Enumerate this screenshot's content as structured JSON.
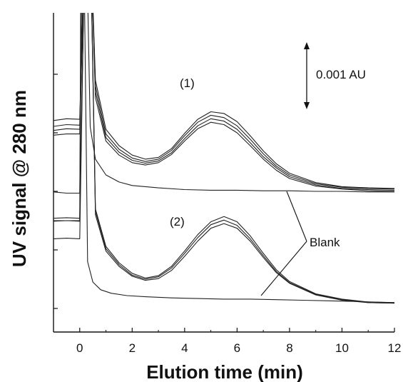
{
  "chart_data": {
    "type": "line",
    "title": "",
    "xlabel": "Elution time (min)",
    "ylabel": "UV signal @ 280 nm",
    "xlim": [
      -1,
      12
    ],
    "x_ticks": [
      0,
      2,
      4,
      6,
      8,
      10,
      12
    ],
    "x_tick_labels": [
      "0",
      "2",
      "4",
      "6",
      "8",
      "10",
      "12"
    ],
    "y_scale_bar": "0.001 AU",
    "y_tick_labels_shown": false,
    "annotations": {
      "group1": "(1)",
      "group2": "(2)",
      "blank": "Blank"
    },
    "series": [
      {
        "group": "(1)",
        "x": [
          -1.0,
          -0.5,
          0.0,
          0.2,
          0.4,
          0.6,
          1.0,
          1.5,
          2.0,
          2.5,
          3.0,
          3.5,
          4.0,
          4.5,
          5.0,
          5.5,
          6.0,
          6.5,
          7.0,
          7.5,
          8.0,
          9.0,
          10.0,
          11.0,
          12.0
        ],
        "y": [
          0.00121,
          0.00124,
          0.00123,
          0.0045,
          0.0045,
          0.0019,
          0.00106,
          0.00078,
          0.00062,
          0.00055,
          0.00058,
          0.00073,
          0.00099,
          0.00123,
          0.00136,
          0.00133,
          0.00119,
          0.00095,
          0.00069,
          0.00047,
          0.00031,
          0.00015,
          8e-05,
          6e-05,
          5e-05
        ]
      },
      {
        "group": "(1)",
        "x": [
          -1.0,
          -0.5,
          0.0,
          0.2,
          0.4,
          0.6,
          1.0,
          1.5,
          2.0,
          2.5,
          3.0,
          3.5,
          4.0,
          4.5,
          5.0,
          5.5,
          6.0,
          6.5,
          7.0,
          7.5,
          8.0,
          9.0,
          10.0,
          11.0,
          12.0
        ],
        "y": [
          0.00111,
          0.00114,
          0.00113,
          0.0045,
          0.0045,
          0.0018,
          0.00098,
          0.00072,
          0.00057,
          0.00051,
          0.00055,
          0.0007,
          0.00095,
          0.00118,
          0.0013,
          0.00126,
          0.00112,
          0.00089,
          0.00064,
          0.00043,
          0.00028,
          0.00013,
          7e-05,
          5e-05,
          4e-05
        ]
      },
      {
        "group": "(1)",
        "x": [
          -1.0,
          -0.5,
          0.0,
          0.2,
          0.4,
          0.6,
          1.0,
          1.5,
          2.0,
          2.5,
          3.0,
          3.5,
          4.0,
          4.5,
          5.0,
          5.5,
          6.0,
          6.5,
          7.0,
          7.5,
          8.0,
          9.0,
          10.0,
          11.0,
          12.0
        ],
        "y": [
          0.00104,
          0.00107,
          0.00106,
          0.0045,
          0.0045,
          0.0017,
          0.00092,
          0.00067,
          0.00053,
          0.00048,
          0.00052,
          0.00066,
          0.0009,
          0.00112,
          0.00124,
          0.0012,
          0.00106,
          0.00083,
          0.00059,
          0.0004,
          0.00025,
          0.00011,
          5e-05,
          3e-05,
          2e-05
        ]
      },
      {
        "group": "(1)",
        "x": [
          -1.0,
          -0.5,
          0.0,
          0.2,
          0.4,
          0.6,
          1.0,
          1.5,
          2.0,
          2.5,
          3.0,
          3.5,
          4.0,
          4.5,
          5.0,
          5.5,
          6.0,
          6.5,
          7.0,
          7.5,
          8.0,
          9.0,
          10.0,
          11.0,
          12.0
        ],
        "y": [
          0.00096,
          0.00098,
          0.00098,
          0.0045,
          0.0045,
          0.0016,
          0.00086,
          0.00062,
          0.00049,
          0.00045,
          0.00049,
          0.00063,
          0.00086,
          0.00107,
          0.00118,
          0.00114,
          0.001,
          0.00078,
          0.00055,
          0.00036,
          0.00022,
          9e-05,
          4e-05,
          1e-05,
          0.0
        ]
      },
      {
        "group": "Blank",
        "x": [
          -1.0,
          -0.5,
          0.0,
          0.1,
          0.25,
          0.4,
          0.6,
          1.0,
          1.5,
          2.0,
          3.0,
          4.0,
          5.0,
          6.0,
          7.0,
          8.0,
          9.0,
          10.0,
          11.0,
          12.0
        ],
        "y": [
          -1e-05,
          -3e-05,
          -3e-05,
          0.0045,
          0.0045,
          0.0011,
          0.00055,
          0.00028,
          0.00016,
          0.0001,
          6e-05,
          3e-05,
          2e-05,
          2e-05,
          1e-05,
          1e-05,
          0.0,
          0.0,
          -1e-05,
          -1e-05
        ]
      },
      {
        "group": "(2)",
        "x": [
          -1.0,
          -0.5,
          0.0,
          0.2,
          0.4,
          0.6,
          1.0,
          1.5,
          2.0,
          2.5,
          3.0,
          3.5,
          4.0,
          4.5,
          5.0,
          5.5,
          6.0,
          6.5,
          7.0,
          7.5,
          8.0,
          9.0,
          10.0,
          11.0,
          12.0
        ],
        "y": [
          -0.00046,
          -0.00045,
          -0.00046,
          0.0045,
          0.0045,
          -0.0003,
          -0.00094,
          -0.00122,
          -0.0014,
          -0.00148,
          -0.00144,
          -0.00128,
          -0.00102,
          -0.00074,
          -0.00052,
          -0.00043,
          -0.00052,
          -0.00076,
          -0.00106,
          -0.00134,
          -0.00154,
          -0.00175,
          -0.00184,
          -0.00189,
          -0.0019
        ]
      },
      {
        "group": "(2)",
        "x": [
          -1.0,
          -0.5,
          0.0,
          0.2,
          0.4,
          0.6,
          1.0,
          1.5,
          2.0,
          2.5,
          3.0,
          3.5,
          4.0,
          4.5,
          5.0,
          5.5,
          6.0,
          6.5,
          7.0,
          7.5,
          8.0,
          9.0,
          10.0,
          11.0,
          12.0
        ],
        "y": [
          -0.00051,
          -0.0005,
          -0.00051,
          0.0045,
          0.0045,
          -0.00034,
          -0.00098,
          -0.00125,
          -0.00143,
          -0.0015,
          -0.00146,
          -0.00131,
          -0.00106,
          -0.00079,
          -0.00057,
          -0.00049,
          -0.00058,
          -0.00081,
          -0.0011,
          -0.00137,
          -0.00156,
          -0.00176,
          -0.00185,
          -0.0019,
          -0.00191
        ]
      },
      {
        "group": "(2)",
        "x": [
          -1.0,
          -0.5,
          0.0,
          0.2,
          0.4,
          0.6,
          1.0,
          1.5,
          2.0,
          2.5,
          3.0,
          3.5,
          4.0,
          4.5,
          5.0,
          5.5,
          6.0,
          6.5,
          7.0,
          7.5,
          8.0,
          9.0,
          10.0,
          11.0,
          12.0
        ],
        "y": [
          -0.00081,
          -0.0008,
          -0.00081,
          0.0045,
          0.0045,
          -0.0004,
          -0.00102,
          -0.00128,
          -0.00145,
          -0.00152,
          -0.00149,
          -0.00135,
          -0.00111,
          -0.00085,
          -0.00063,
          -0.00055,
          -0.00063,
          -0.00085,
          -0.00113,
          -0.00139,
          -0.00157,
          -0.00177,
          -0.00186,
          -0.0019,
          -0.00191
        ]
      },
      {
        "group": "Blank",
        "x": [
          -1.0,
          0.0,
          0.05,
          0.15,
          0.3,
          0.5,
          0.8,
          1.2,
          1.8,
          2.5,
          3.5,
          4.5,
          5.5,
          6.5,
          7.5,
          8.5,
          9.5,
          10.5,
          12.0
        ],
        "y": [
          -0.0005,
          -0.0005,
          0.0045,
          0.0045,
          -0.0012,
          -0.00155,
          -0.00168,
          -0.00174,
          -0.00178,
          -0.0018,
          -0.00182,
          -0.00183,
          -0.00184,
          -0.00184,
          -0.00185,
          -0.00186,
          -0.00187,
          -0.00188,
          -0.0019
        ]
      }
    ]
  }
}
